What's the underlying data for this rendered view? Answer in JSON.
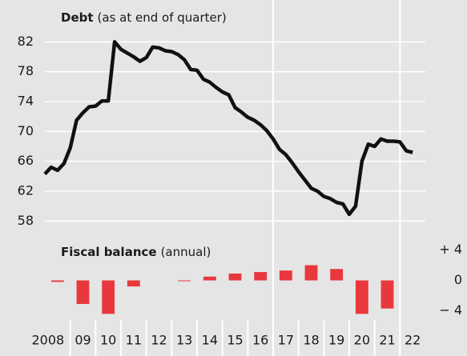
{
  "chart_data": [
    {
      "type": "line",
      "title": "Debt",
      "subtitle": "(as at end of quarter)",
      "x": [
        2008.0,
        2008.25,
        2008.5,
        2008.75,
        2009.0,
        2009.25,
        2009.5,
        2009.75,
        2010.0,
        2010.25,
        2010.5,
        2010.75,
        2011.0,
        2011.25,
        2011.5,
        2011.75,
        2012.0,
        2012.25,
        2012.5,
        2012.75,
        2013.0,
        2013.25,
        2013.5,
        2013.75,
        2014.0,
        2014.25,
        2014.5,
        2014.75,
        2015.0,
        2015.25,
        2015.5,
        2015.75,
        2016.0,
        2016.25,
        2016.5,
        2016.75,
        2017.0,
        2017.25,
        2017.5,
        2017.75,
        2018.0,
        2018.25,
        2018.5,
        2018.75,
        2019.0,
        2019.25,
        2019.5,
        2019.75,
        2020.0,
        2020.25,
        2020.5,
        2020.75,
        2021.0,
        2021.25,
        2021.5,
        2021.75,
        2022.0,
        2022.25,
        2022.5
      ],
      "values": [
        64.3,
        65.2,
        64.8,
        65.7,
        67.8,
        71.5,
        72.5,
        73.3,
        73.4,
        74.1,
        74.1,
        82.0,
        81.0,
        80.5,
        80.0,
        79.4,
        79.9,
        81.3,
        81.2,
        80.8,
        80.7,
        80.3,
        79.6,
        78.3,
        78.2,
        77.0,
        76.6,
        75.9,
        75.3,
        74.9,
        73.2,
        72.6,
        71.9,
        71.5,
        70.9,
        70.1,
        69.0,
        67.6,
        66.9,
        65.8,
        64.6,
        63.5,
        62.4,
        62.0,
        61.3,
        61.0,
        60.5,
        60.3,
        58.9,
        60.0,
        66.0,
        68.3,
        68.0,
        69.0,
        68.7,
        68.7,
        68.6,
        67.4,
        67.2
      ],
      "color": "#111111",
      "xlim": [
        2008,
        2023
      ],
      "ylim": [
        56,
        86
      ],
      "yticks": [
        58,
        62,
        66,
        70,
        74,
        78,
        82
      ],
      "grid": true,
      "vlines": [
        2017,
        2022
      ]
    },
    {
      "type": "bar",
      "title": "Fiscal balance",
      "subtitle": "(annual)",
      "x": [
        2008,
        2009,
        2010,
        2011,
        2013,
        2014,
        2015,
        2016,
        2017,
        2018,
        2019,
        2020,
        2021
      ],
      "values": [
        -0.2,
        -3.1,
        -4.4,
        -0.8,
        -0.1,
        0.5,
        0.9,
        1.1,
        1.3,
        2.0,
        1.5,
        -4.4,
        -3.7
      ],
      "color": "#e8383d",
      "xlim": [
        2008,
        2023
      ],
      "y2lim": [
        -5,
        5
      ],
      "y2ticks": [
        {
          "value": 4,
          "label": "+ 4"
        },
        0,
        {
          "value": -4,
          "label": "− 4"
        }
      ],
      "xticks": [
        {
          "value": 2008,
          "label": "2008"
        },
        {
          "value": 2009,
          "label": "09"
        },
        {
          "value": 2010,
          "label": "10"
        },
        {
          "value": 2011,
          "label": "11"
        },
        {
          "value": 2012,
          "label": "12"
        },
        {
          "value": 2013,
          "label": "13"
        },
        {
          "value": 2014,
          "label": "14"
        },
        {
          "value": 2015,
          "label": "15"
        },
        {
          "value": 2016,
          "label": "16"
        },
        {
          "value": 2017,
          "label": "17"
        },
        {
          "value": 2018,
          "label": "18"
        },
        {
          "value": 2019,
          "label": "19"
        },
        {
          "value": 2020,
          "label": "20"
        },
        {
          "value": 2021,
          "label": "21"
        },
        {
          "value": 2022,
          "label": "22"
        }
      ]
    }
  ]
}
